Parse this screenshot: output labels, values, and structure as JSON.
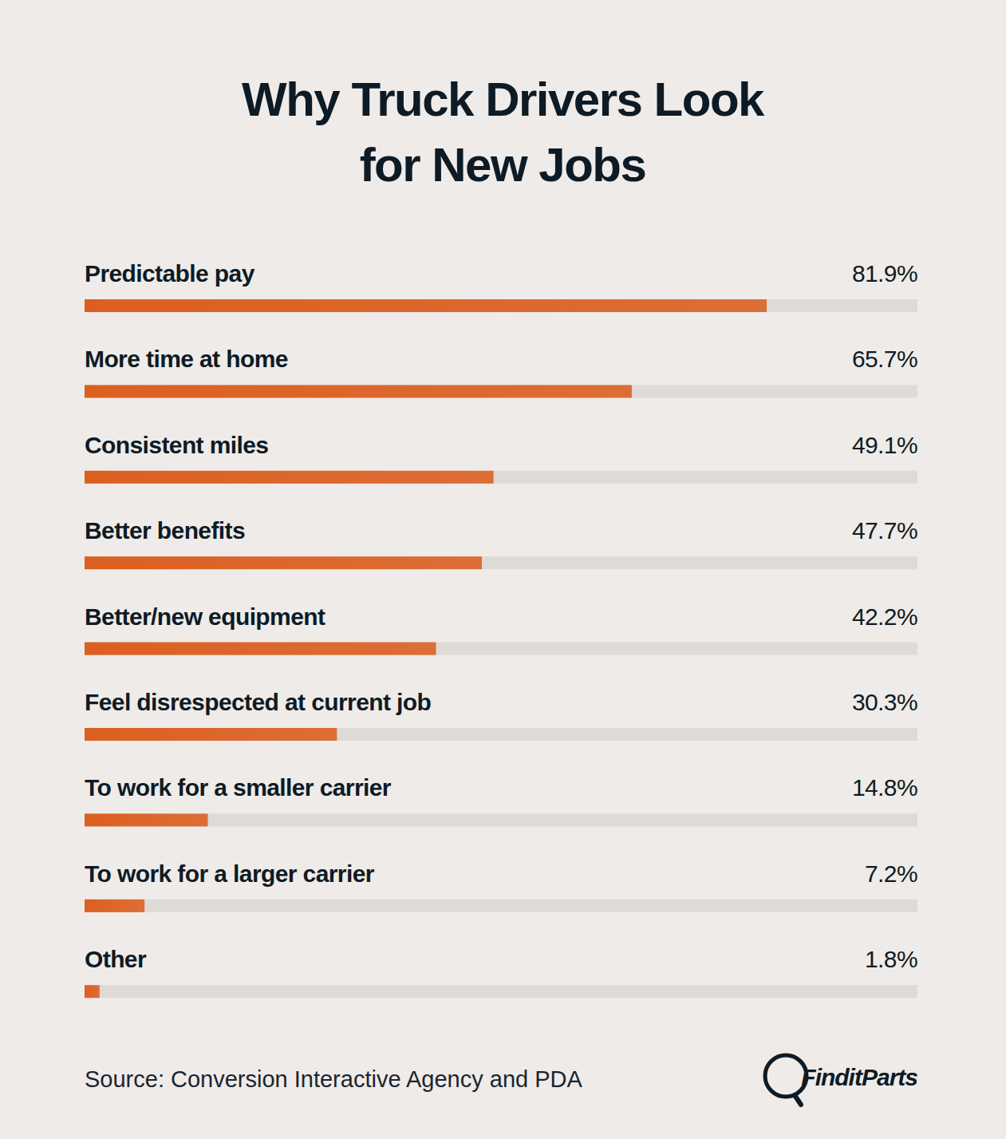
{
  "chart_data": {
    "type": "bar",
    "orientation": "horizontal",
    "title": "Why Truck Drivers Look for New Jobs",
    "categories": [
      "Predictable pay",
      "More time at home",
      "Consistent miles",
      "Better benefits",
      "Better/new equipment",
      "Feel disrespected at current job",
      "To work for a smaller carrier",
      "To work for a larger carrier",
      "Other"
    ],
    "values": [
      81.9,
      65.7,
      49.1,
      47.7,
      42.2,
      30.3,
      14.8,
      7.2,
      1.8
    ],
    "value_labels": [
      "81.9%",
      "65.7%",
      "49.1%",
      "47.7%",
      "42.2%",
      "30.3%",
      "14.8%",
      "7.2%",
      "1.8%"
    ],
    "color": "#dc5f20",
    "xlim": [
      0,
      100
    ],
    "data_labels": true,
    "tick_labels": false,
    "grid": false,
    "source": "Source: Conversion Interactive Agency and PDA",
    "logo": "FinditParts"
  }
}
